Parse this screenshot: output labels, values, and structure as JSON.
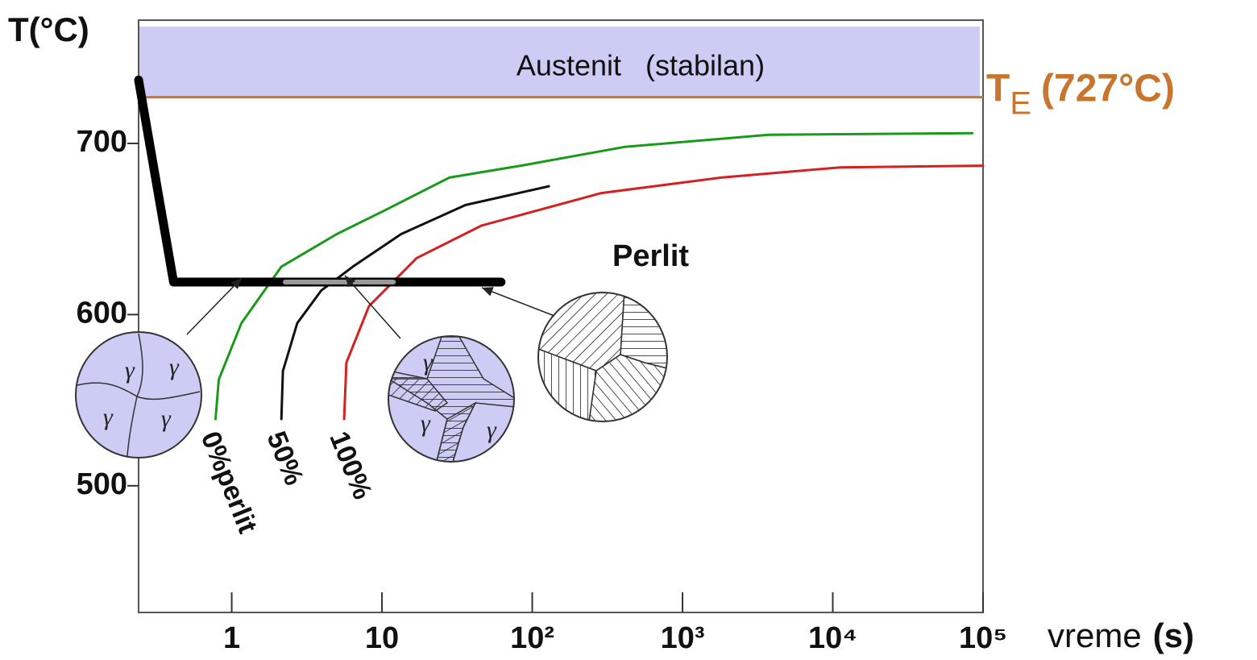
{
  "chart_data": {
    "type": "line",
    "y_axis_label": "T(°C)",
    "x_axis_label": "vreme",
    "x_axis_unit": "(s)",
    "region_label": "Austenit   (stabilan)",
    "region_color": "#ccccf5",
    "reference_line": {
      "value": 727,
      "label_main": "T",
      "label_sub": "E",
      "label_rest": "(727°C)",
      "color": "#c8752e"
    },
    "annotation": "Perlit",
    "gamma_symbol": "γ",
    "x_log": true,
    "xlim": [
      0.24,
      100000
    ],
    "ylim": [
      426,
      772
    ],
    "xticks": [
      1,
      10,
      {
        "value": 100,
        "label": "10²"
      },
      {
        "value": 1000,
        "label": "10³"
      },
      {
        "value": 10000,
        "label": "10⁴"
      },
      {
        "value": 100000,
        "label": "10⁵"
      }
    ],
    "yticks": [
      500,
      600,
      700
    ],
    "series": [
      {
        "name": "0%perlit",
        "color": "#1a9a1a",
        "x": [
          0.78,
          0.82,
          1.16,
          2.14,
          5.0,
          10.5,
          28,
          84,
          414,
          3740,
          85000
        ],
        "values": [
          539,
          562,
          595,
          628,
          647,
          661,
          680,
          687,
          698,
          705,
          706
        ]
      },
      {
        "name": "50%",
        "color": "#111111",
        "x": [
          2.14,
          2.19,
          2.73,
          3.94,
          6.4,
          13.4,
          36,
          129
        ],
        "values": [
          539,
          567,
          595,
          614,
          628,
          647,
          664,
          675
        ]
      },
      {
        "name": "100%",
        "color": "#d42020",
        "x": [
          5.6,
          5.8,
          8.2,
          17,
          46,
          288,
          1800,
          11200,
          100000
        ],
        "values": [
          539,
          572,
          605,
          633,
          652,
          671,
          680,
          686,
          687
        ]
      }
    ],
    "cooling_path": {
      "color": "#000000",
      "x": [
        0.24,
        0.41,
        62
      ],
      "values": [
        737,
        619,
        619
      ]
    },
    "transformation_interval": {
      "color": "#999999",
      "x": [
        2.27,
        11.9
      ],
      "values": [
        619,
        619
      ]
    }
  }
}
